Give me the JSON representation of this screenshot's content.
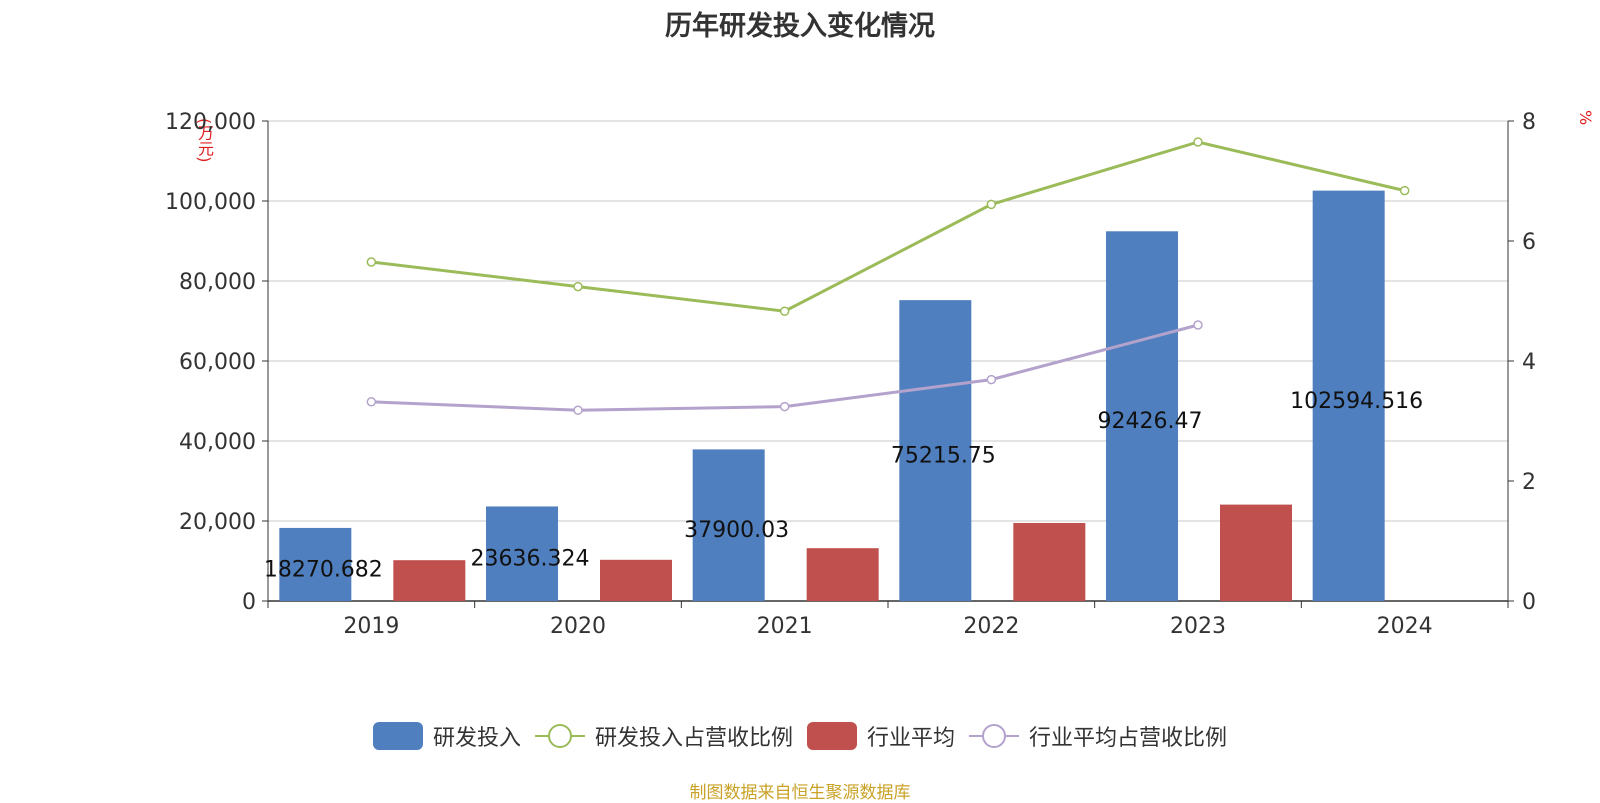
{
  "title": "历年研发投入变化情况",
  "source_note": "制图数据来自恒生聚源数据库",
  "left_axis_unit": "(万元)",
  "right_axis_unit": "%",
  "colors": {
    "rd_bar": "#4f7fbe",
    "industry_bar": "#c0504d",
    "rd_ratio_line": "#9bbb59",
    "industry_ratio_line": "#b3a2cc",
    "grid": "#c8c8c8",
    "axis": "#333333"
  },
  "legend": [
    {
      "label": "研发投入",
      "kind": "bar",
      "color": "#4f7fbe"
    },
    {
      "label": "研发投入占营收比例",
      "kind": "line",
      "color": "#9bbb59"
    },
    {
      "label": "行业平均",
      "kind": "bar",
      "color": "#c0504d"
    },
    {
      "label": "行业平均占营收比例",
      "kind": "line",
      "color": "#b3a2cc"
    }
  ],
  "chart_data": {
    "type": "bar",
    "title": "历年研发投入变化情况",
    "categories": [
      "2019",
      "2020",
      "2021",
      "2022",
      "2023",
      "2024"
    ],
    "y_left": {
      "unit": "(万元)",
      "ylim": [
        0,
        120000
      ],
      "ticks": [
        0,
        20000,
        40000,
        60000,
        80000,
        100000,
        120000
      ],
      "tick_labels": [
        "0",
        "20,000",
        "40,000",
        "60,000",
        "80,000",
        "100,000",
        "120,000"
      ]
    },
    "y_right": {
      "unit": "%",
      "ylim": [
        0,
        8
      ],
      "ticks": [
        0,
        2,
        4,
        6,
        8
      ],
      "tick_labels": [
        "0",
        "2",
        "4",
        "6",
        "8"
      ]
    },
    "grid": true,
    "legend_position": "bottom",
    "series": [
      {
        "name": "研发投入",
        "type": "bar",
        "axis": "left",
        "values": [
          18270.682,
          23636.324,
          37900.03,
          75215.75,
          92426.47,
          102594.516
        ],
        "data_labels": [
          "18270.682",
          "23636.324",
          "37900.03",
          "75215.75",
          "92426.47",
          "102594.516"
        ]
      },
      {
        "name": "行业平均",
        "type": "bar",
        "axis": "left",
        "values": [
          10200,
          10300,
          13200,
          19500,
          24100,
          null
        ]
      },
      {
        "name": "研发投入占营收比例",
        "type": "line",
        "axis": "right",
        "values": [
          5.65,
          5.24,
          4.83,
          6.61,
          7.65,
          6.84
        ]
      },
      {
        "name": "行业平均占营收比例",
        "type": "line",
        "axis": "right",
        "values": [
          3.32,
          3.18,
          3.24,
          3.69,
          4.6,
          null
        ]
      }
    ]
  }
}
